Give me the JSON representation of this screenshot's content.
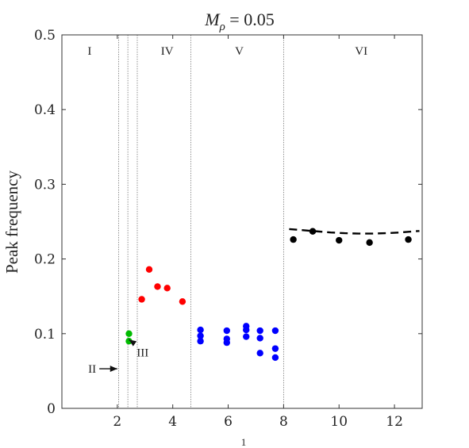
{
  "chart_data": {
    "type": "scatter",
    "title_main": "M",
    "title_sub": "ρ",
    "title_rest": " = 0.05",
    "xlabel": "1",
    "ylabel": "Peak frequency",
    "xlim": [
      0,
      13
    ],
    "ylim": [
      0,
      0.5
    ],
    "xticks": [
      2,
      4,
      6,
      8,
      10,
      12
    ],
    "yticks": [
      0,
      0.1,
      0.2,
      0.3,
      0.4,
      0.5
    ],
    "ytick_labels": [
      "0",
      "0.1",
      "0.2",
      "0.3",
      "0.4",
      "0.5"
    ],
    "xtick_labels": [
      "2",
      "4",
      "6",
      "8",
      "10",
      "12"
    ],
    "grid": false,
    "region_boundaries": [
      2.05,
      2.38,
      2.72,
      4.65,
      8.0
    ],
    "region_labels": [
      {
        "text": "I",
        "x": 1.0,
        "y": 0.48
      },
      {
        "text": "IV",
        "x": 3.8,
        "y": 0.48
      },
      {
        "text": "V",
        "x": 6.4,
        "y": 0.48
      },
      {
        "text": "VI",
        "x": 10.8,
        "y": 0.48
      }
    ],
    "annotations": [
      {
        "text": "II",
        "text_x": 0.95,
        "text_y": 0.053,
        "arrow_to_x": 2.0,
        "arrow_to_y": 0.053
      },
      {
        "text": "III",
        "text_x": 2.7,
        "text_y": 0.075,
        "arrow_to_x": 2.42,
        "arrow_to_y": 0.092
      }
    ],
    "series": [
      {
        "color": "#00bb00",
        "points": [
          [
            2.42,
            0.1
          ],
          [
            2.42,
            0.09
          ]
        ]
      },
      {
        "color": "#ff0000",
        "points": [
          [
            2.88,
            0.146
          ],
          [
            3.15,
            0.186
          ],
          [
            3.45,
            0.163
          ],
          [
            3.8,
            0.161
          ],
          [
            4.35,
            0.143
          ]
        ]
      },
      {
        "color": "#0000ff",
        "points": [
          [
            5.0,
            0.105
          ],
          [
            5.0,
            0.097
          ],
          [
            5.0,
            0.09
          ],
          [
            5.95,
            0.104
          ],
          [
            5.95,
            0.093
          ],
          [
            5.95,
            0.088
          ],
          [
            6.65,
            0.11
          ],
          [
            6.65,
            0.105
          ],
          [
            6.65,
            0.096
          ],
          [
            7.15,
            0.104
          ],
          [
            7.15,
            0.094
          ],
          [
            7.15,
            0.074
          ],
          [
            7.7,
            0.104
          ],
          [
            7.7,
            0.08
          ],
          [
            7.7,
            0.068
          ]
        ]
      },
      {
        "color": "#000000",
        "points": [
          [
            8.35,
            0.226
          ],
          [
            9.05,
            0.237
          ],
          [
            10.0,
            0.225
          ],
          [
            11.1,
            0.222
          ],
          [
            12.5,
            0.226
          ]
        ]
      }
    ],
    "fit_line": {
      "color": "#000000",
      "style": "dashed",
      "x": [
        8.2,
        8.7,
        9.2,
        9.7,
        10.2,
        10.7,
        11.2,
        11.7,
        12.2,
        12.7,
        12.9
      ],
      "y": [
        0.24,
        0.2385,
        0.237,
        0.2355,
        0.2345,
        0.234,
        0.234,
        0.2345,
        0.2355,
        0.237,
        0.2375
      ]
    }
  }
}
